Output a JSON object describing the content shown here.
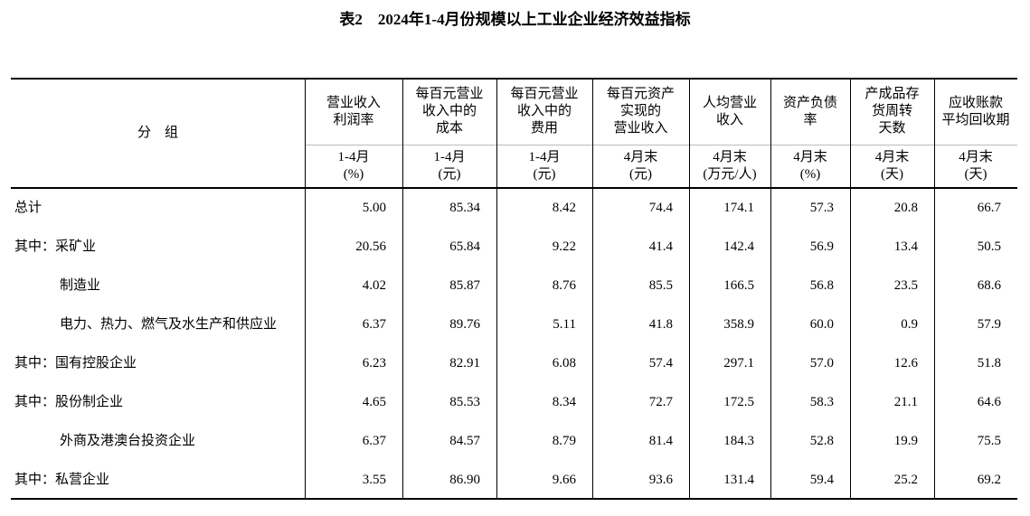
{
  "title": "表2　2024年1-4月份规模以上工业企业经济效益指标",
  "table": {
    "group_label": "分　组",
    "columns": [
      {
        "name": [
          "营业收入",
          "利润率"
        ],
        "unit": [
          "1-4月",
          "(%)"
        ]
      },
      {
        "name": [
          "每百元营业",
          "收入中的",
          "成本"
        ],
        "unit": [
          "1-4月",
          "(元)"
        ]
      },
      {
        "name": [
          "每百元营业",
          "收入中的",
          "费用"
        ],
        "unit": [
          "1-4月",
          "(元)"
        ]
      },
      {
        "name": [
          "每百元资产",
          "实现的",
          "营业收入"
        ],
        "unit": [
          "4月末",
          "(元)"
        ]
      },
      {
        "name": [
          "人均营业",
          "收入"
        ],
        "unit": [
          "4月末",
          "(万元/人)"
        ]
      },
      {
        "name": [
          "资产负债",
          "率"
        ],
        "unit": [
          "4月末",
          "(%)"
        ]
      },
      {
        "name": [
          "产成品存",
          "货周转",
          "天数"
        ],
        "unit": [
          "4月末",
          "(天)"
        ]
      },
      {
        "name": [
          "应收账款",
          "平均回收期"
        ],
        "unit": [
          "4月末",
          "(天)"
        ]
      }
    ],
    "rows": [
      {
        "label": "总计",
        "values": [
          "5.00",
          "85.34",
          "8.42",
          "74.4",
          "174.1",
          "57.3",
          "20.8",
          "66.7"
        ]
      },
      {
        "label": "其中：采矿业",
        "values": [
          "20.56",
          "65.84",
          "9.22",
          "41.4",
          "142.4",
          "56.9",
          "13.4",
          "50.5"
        ]
      },
      {
        "label": "制造业",
        "values": [
          "4.02",
          "85.87",
          "8.76",
          "85.5",
          "166.5",
          "56.8",
          "23.5",
          "68.6"
        ]
      },
      {
        "label": "电力、热力、燃气及水生产和供应业",
        "values": [
          "6.37",
          "89.76",
          "5.11",
          "41.8",
          "358.9",
          "60.0",
          "0.9",
          "57.9"
        ]
      },
      {
        "label": "其中：国有控股企业",
        "values": [
          "6.23",
          "82.91",
          "6.08",
          "57.4",
          "297.1",
          "57.0",
          "12.6",
          "51.8"
        ]
      },
      {
        "label": "其中：股份制企业",
        "values": [
          "4.65",
          "85.53",
          "8.34",
          "72.7",
          "172.5",
          "58.3",
          "21.1",
          "64.6"
        ]
      },
      {
        "label": "外商及港澳台投资企业",
        "values": [
          "6.37",
          "84.57",
          "8.79",
          "81.4",
          "184.3",
          "52.8",
          "19.9",
          "75.5"
        ]
      },
      {
        "label": "其中：私营企业",
        "values": [
          "3.55",
          "86.90",
          "9.66",
          "93.6",
          "131.4",
          "59.4",
          "25.2",
          "69.2"
        ]
      }
    ]
  }
}
